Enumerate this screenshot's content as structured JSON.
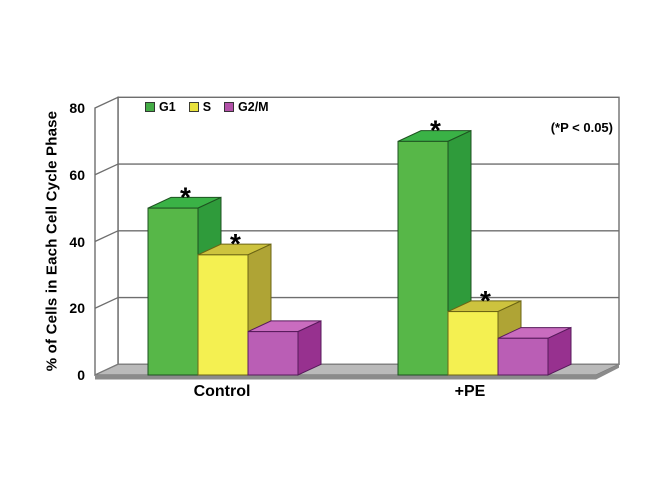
{
  "chart_data": {
    "type": "bar",
    "variant": "3d-clustered",
    "title": "",
    "xlabel": "",
    "ylabel": "% of Cells in Each Cell Cycle Phase",
    "ylim": [
      0,
      80
    ],
    "yticks": [
      0,
      20,
      40,
      60,
      80
    ],
    "grid": true,
    "legend_position": "top-left-inside",
    "categories": [
      "Control",
      "+PE"
    ],
    "series": [
      {
        "name": "G1",
        "values": [
          50,
          70
        ],
        "significant": [
          true,
          true
        ]
      },
      {
        "name": "S",
        "values": [
          36,
          19
        ],
        "significant": [
          true,
          true
        ]
      },
      {
        "name": "G2/M",
        "values": [
          13,
          11
        ],
        "significant": [
          false,
          false
        ]
      }
    ],
    "significance_marker": "*",
    "annotation": "(*P < 0.05)"
  },
  "colors": {
    "series": [
      {
        "name": "G1",
        "front": "#57B748",
        "top": "#3AB246",
        "side": "#2F9B3B",
        "edge": "#1E5220",
        "legend": "#44AC46"
      },
      {
        "name": "S",
        "front": "#F4F051",
        "top": "#CDC33E",
        "side": "#AFA435",
        "edge": "#6B6414",
        "legend": "#E9E23C"
      },
      {
        "name": "G2/M",
        "front": "#BA5EB5",
        "top": "#C96CBF",
        "side": "#97318F",
        "edge": "#571A5B",
        "legend": "#B351A9"
      }
    ],
    "wall_line": "#6E6E6E",
    "wall_fill": "#FFFFFF",
    "floor_fill": "#BABABA",
    "floor_edge": "#7A7A7A",
    "floor_front": "#8B8B8B",
    "text": "#000000"
  }
}
